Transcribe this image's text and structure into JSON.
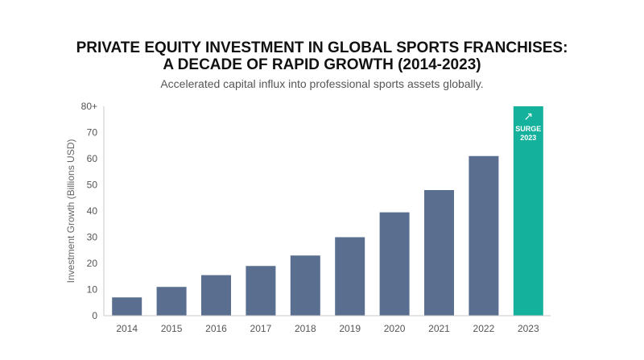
{
  "title_line1": "PRIVATE EQUITY INVESTMENT IN GLOBAL SPORTS FRANCHISES:",
  "title_line2": "A DECADE OF RAPID GROWTH (2014-2023)",
  "subtitle": "Accelerated capital influx into professional sports assets globally.",
  "colors": {
    "bar": "#5a6f8f",
    "highlight": "#14b19c",
    "axis": "#c9c9c9"
  },
  "chart_data": {
    "type": "bar",
    "title": "PRIVATE EQUITY INVESTMENT IN GLOBAL SPORTS FRANCHISES: A DECADE OF RAPID GROWTH (2014-2023)",
    "subtitle": "Accelerated capital influx into professional sports assets globally.",
    "xlabel": "",
    "ylabel": "Investment Growth (Billions USD)",
    "categories": [
      "2014",
      "2015",
      "2016",
      "2017",
      "2018",
      "2019",
      "2020",
      "2021",
      "2022",
      "2023"
    ],
    "values": [
      7,
      11,
      15.5,
      19,
      23,
      30,
      39.5,
      48,
      61,
      80
    ],
    "ylim": [
      0,
      80
    ],
    "yticks": [
      0,
      10,
      20,
      30,
      40,
      50,
      60,
      70,
      80
    ],
    "ytick_labels": [
      "0",
      "10",
      "20",
      "30",
      "40",
      "50",
      "60",
      "70",
      "80+"
    ],
    "grid": false,
    "highlight": {
      "category": "2023",
      "icon": "arrow-up-right-icon",
      "arrow": "↗",
      "label_line1": "SURGE",
      "label_line2": "2023"
    }
  }
}
